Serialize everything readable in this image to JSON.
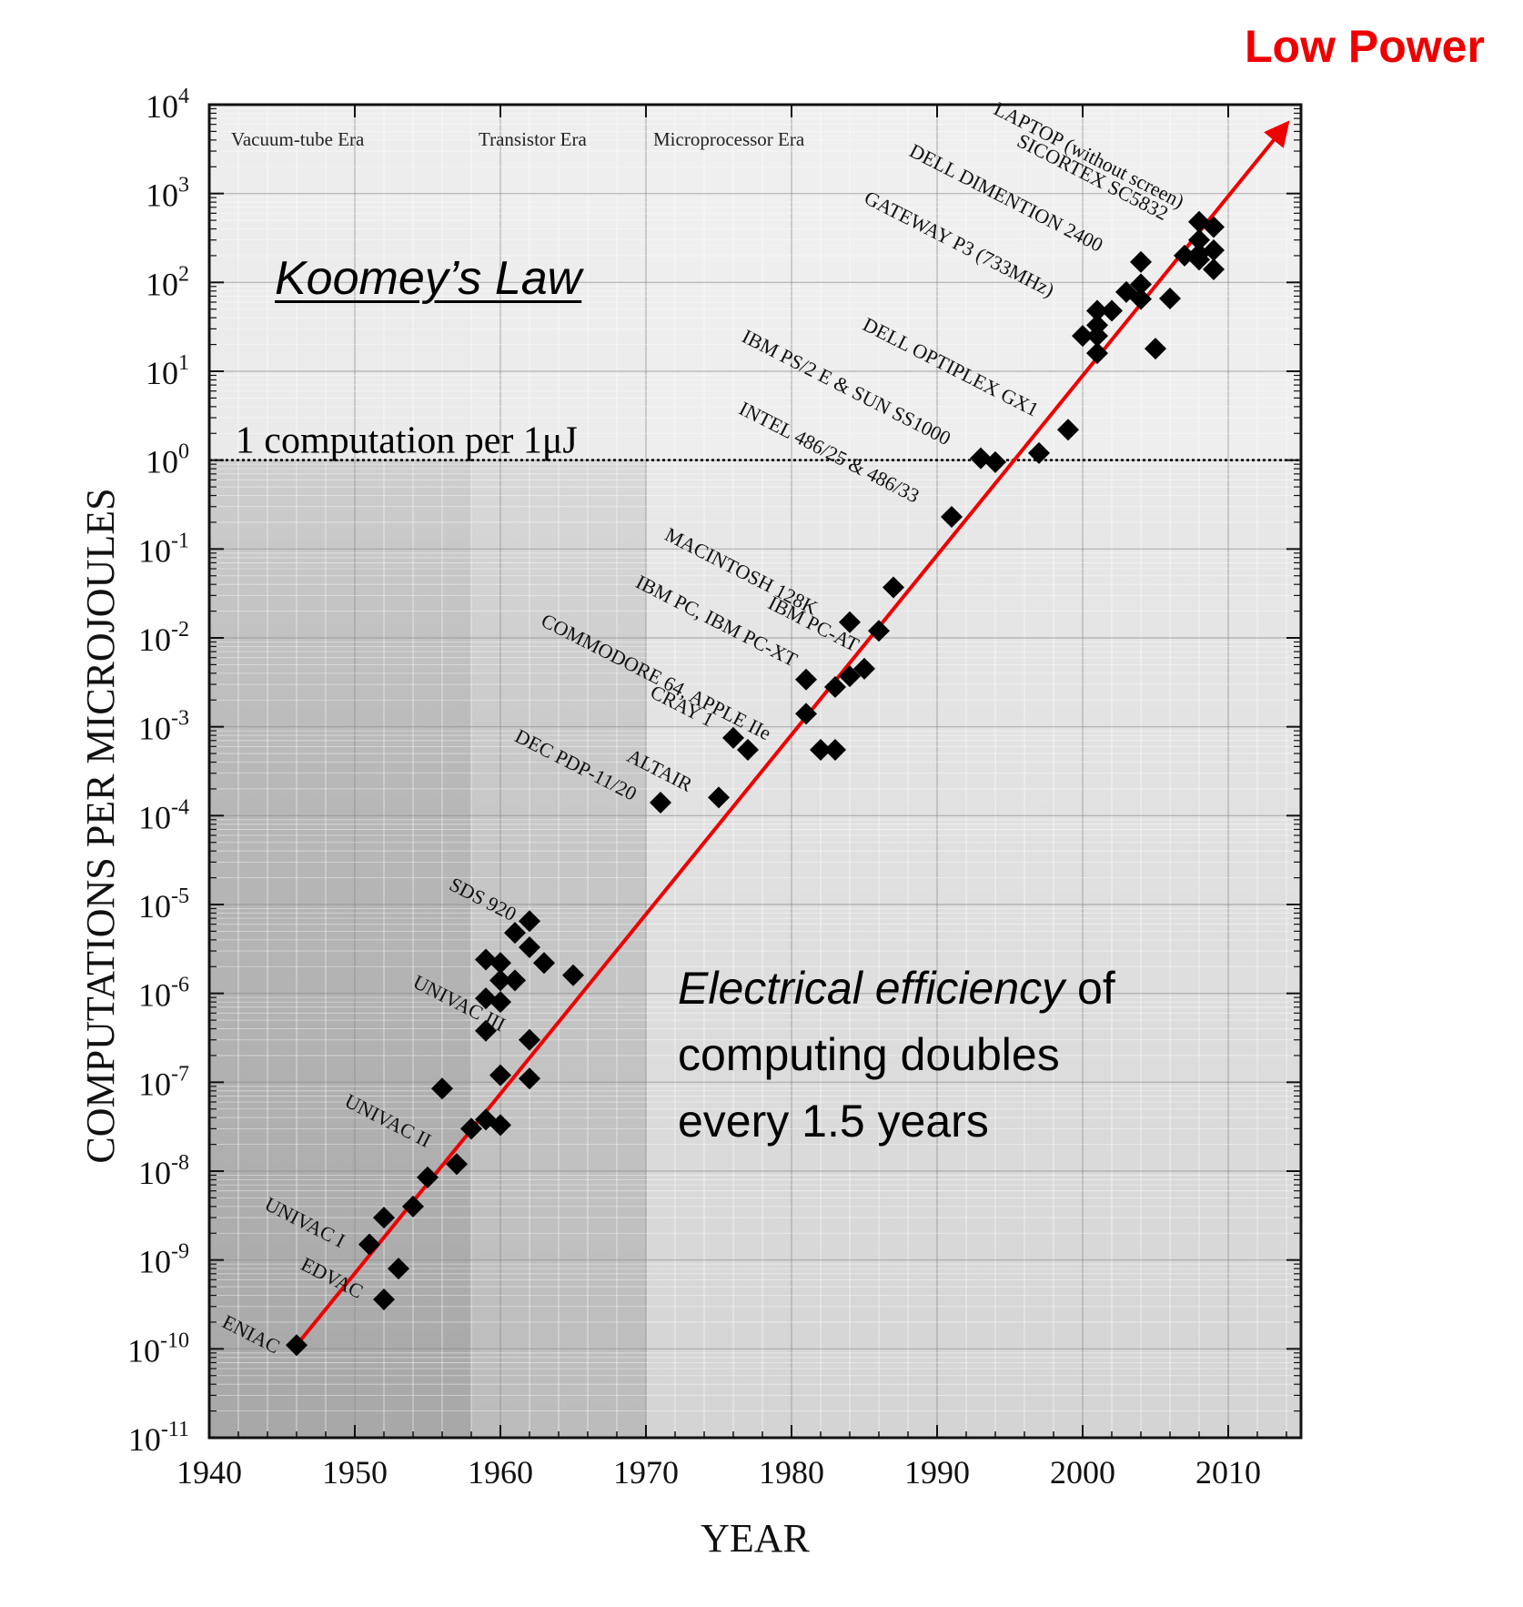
{
  "header": {
    "badge": "Low Power",
    "annotation_title": "Koomey’s Law",
    "annotation_body_italic": "Electrical efficiency",
    "annotation_body_line1_rest": " of",
    "annotation_body_line2": "computing doubles",
    "annotation_body_line3": "every 1.5 years"
  },
  "colors": {
    "badge": "#ee0000",
    "trend_line": "#ee0000",
    "markers": "#000000",
    "vacuum_era_band": "#b4b4b4",
    "transistor_era_band": "#c6c6c6",
    "microprocessor_upper": "#ececec",
    "microprocessor_lower": "#d4d4d4"
  },
  "chart_data": {
    "type": "scatter",
    "title": "",
    "xlabel": "YEAR",
    "ylabel": "COMPUTATIONS PER MICROJOULES",
    "xlim": [
      1940,
      2015
    ],
    "ylim_exponents": [
      -11,
      4
    ],
    "y_scale": "log10",
    "grid": true,
    "x_ticks": [
      "1940",
      "1950",
      "1960",
      "1970",
      "1980",
      "1990",
      "2000",
      "2010"
    ],
    "y_ticks": [
      {
        "base": "10",
        "exp": "4"
      },
      {
        "base": "10",
        "exp": "3"
      },
      {
        "base": "10",
        "exp": "2"
      },
      {
        "base": "10",
        "exp": "1"
      },
      {
        "base": "10",
        "exp": "0"
      },
      {
        "base": "10",
        "exp": "-1"
      },
      {
        "base": "10",
        "exp": "-2"
      },
      {
        "base": "10",
        "exp": "-3"
      },
      {
        "base": "10",
        "exp": "-4"
      },
      {
        "base": "10",
        "exp": "-5"
      },
      {
        "base": "10",
        "exp": "-6"
      },
      {
        "base": "10",
        "exp": "-7"
      },
      {
        "base": "10",
        "exp": "-8"
      },
      {
        "base": "10",
        "exp": "-9"
      },
      {
        "base": "10",
        "exp": "-10"
      },
      {
        "base": "10",
        "exp": "-11"
      }
    ],
    "eras": [
      {
        "label": "Vacuum-tube Era",
        "from": 1940,
        "to": 1958
      },
      {
        "label": "Transistor Era",
        "from": 1958,
        "to": 1970
      },
      {
        "label": "Microprocessor Era",
        "from": 1970,
        "to": 2015
      }
    ],
    "reference_line": {
      "label": "1 computation per 1μJ",
      "y": 1
    },
    "trend_line": {
      "x": [
        1946,
        2014
      ],
      "y": [
        1.1e-10,
        6000
      ]
    },
    "points": [
      {
        "x": 1946,
        "y": 1.1e-10
      },
      {
        "x": 1951,
        "y": 1.5e-09
      },
      {
        "x": 1952,
        "y": 3e-09
      },
      {
        "x": 1952,
        "y": 3.6e-10
      },
      {
        "x": 1953,
        "y": 8e-10
      },
      {
        "x": 1954,
        "y": 4e-09
      },
      {
        "x": 1955,
        "y": 8.5e-09
      },
      {
        "x": 1956,
        "y": 8.5e-08
      },
      {
        "x": 1957,
        "y": 1.2e-08
      },
      {
        "x": 1958,
        "y": 3e-08
      },
      {
        "x": 1959,
        "y": 2.4e-06
      },
      {
        "x": 1959,
        "y": 8.8e-07
      },
      {
        "x": 1959,
        "y": 3.8e-07
      },
      {
        "x": 1959,
        "y": 3.8e-08
      },
      {
        "x": 1960,
        "y": 2.2e-06
      },
      {
        "x": 1960,
        "y": 1.4e-06
      },
      {
        "x": 1960,
        "y": 8e-07
      },
      {
        "x": 1960,
        "y": 1.2e-07
      },
      {
        "x": 1960,
        "y": 3.3e-08
      },
      {
        "x": 1961,
        "y": 4.8e-06
      },
      {
        "x": 1961,
        "y": 1.4e-06
      },
      {
        "x": 1962,
        "y": 6.5e-06
      },
      {
        "x": 1962,
        "y": 3.3e-06
      },
      {
        "x": 1962,
        "y": 3e-07
      },
      {
        "x": 1962,
        "y": 1.1e-07
      },
      {
        "x": 1963,
        "y": 2.2e-06
      },
      {
        "x": 1965,
        "y": 1.6e-06
      },
      {
        "x": 1971,
        "y": 0.00014
      },
      {
        "x": 1975,
        "y": 0.00016
      },
      {
        "x": 1976,
        "y": 0.00075
      },
      {
        "x": 1977,
        "y": 0.00055
      },
      {
        "x": 1981,
        "y": 0.0034
      },
      {
        "x": 1981,
        "y": 0.0014
      },
      {
        "x": 1982,
        "y": 0.00055
      },
      {
        "x": 1983,
        "y": 0.0028
      },
      {
        "x": 1983,
        "y": 0.00055
      },
      {
        "x": 1984,
        "y": 0.015
      },
      {
        "x": 1984,
        "y": 0.0037
      },
      {
        "x": 1985,
        "y": 0.0045
      },
      {
        "x": 1986,
        "y": 0.012
      },
      {
        "x": 1987,
        "y": 0.037
      },
      {
        "x": 1991,
        "y": 0.23
      },
      {
        "x": 1993,
        "y": 1.05
      },
      {
        "x": 1994,
        "y": 0.95
      },
      {
        "x": 1997,
        "y": 1.2
      },
      {
        "x": 1999,
        "y": 2.2
      },
      {
        "x": 2000,
        "y": 25
      },
      {
        "x": 2001,
        "y": 48
      },
      {
        "x": 2001,
        "y": 33
      },
      {
        "x": 2001,
        "y": 25
      },
      {
        "x": 2001,
        "y": 16
      },
      {
        "x": 2002,
        "y": 48
      },
      {
        "x": 2003,
        "y": 78
      },
      {
        "x": 2004,
        "y": 170
      },
      {
        "x": 2004,
        "y": 95
      },
      {
        "x": 2004,
        "y": 65
      },
      {
        "x": 2005,
        "y": 18
      },
      {
        "x": 2006,
        "y": 66
      },
      {
        "x": 2007,
        "y": 200
      },
      {
        "x": 2008,
        "y": 480
      },
      {
        "x": 2008,
        "y": 300
      },
      {
        "x": 2008,
        "y": 210
      },
      {
        "x": 2008,
        "y": 180
      },
      {
        "x": 2009,
        "y": 420
      },
      {
        "x": 2009,
        "y": 230
      },
      {
        "x": 2009,
        "y": 140
      }
    ],
    "annotations": [
      {
        "text": "ENIAC",
        "x": 1940.8,
        "y": 1.8e-10
      },
      {
        "text": "EDVAC",
        "x": 1946.2,
        "y": 8e-10
      },
      {
        "text": "UNIVAC I",
        "x": 1943.7,
        "y": 3.8e-09
      },
      {
        "text": "UNIVAC II",
        "x": 1949.2,
        "y": 5.5e-08
      },
      {
        "text": "UNIVAC III",
        "x": 1953.9,
        "y": 1.2e-06
      },
      {
        "text": "SDS 920",
        "x": 1956.4,
        "y": 1.5e-05
      },
      {
        "text": "DEC PDP-11/20",
        "x": 1960.9,
        "y": 0.0007
      },
      {
        "text": "ALTAIR",
        "x": 1968.6,
        "y": 0.00042
      },
      {
        "text": "CRAY 1",
        "x": 1970.2,
        "y": 0.0022
      },
      {
        "text": "COMMODORE 64, APPLE IIe",
        "x": 1962.7,
        "y": 0.014
      },
      {
        "text": "IBM PC, IBM PC-XT",
        "x": 1969.2,
        "y": 0.038
      },
      {
        "text": "IBM PC-AT",
        "x": 1978.3,
        "y": 0.022
      },
      {
        "text": "MACINTOSH 128K",
        "x": 1971.2,
        "y": 0.13
      },
      {
        "text": "INTEL 486/25 & 486/33",
        "x": 1976.3,
        "y": 3.4
      },
      {
        "text": "IBM PS/2 E & SUN SS1000",
        "x": 1976.5,
        "y": 22
      },
      {
        "text": "DELL OPTIPLEX GX1",
        "x": 1984.8,
        "y": 30
      },
      {
        "text": "GATEWAY P3 (733MHz)",
        "x": 1984.9,
        "y": 800
      },
      {
        "text": "DELL DIMENTION 2400",
        "x": 1988.0,
        "y": 2700
      },
      {
        "text": "SICORTEX SC5832",
        "x": 1995.4,
        "y": 3500
      },
      {
        "text": "LAPTOP (without screen)",
        "x": 1993.8,
        "y": 8000
      }
    ]
  }
}
